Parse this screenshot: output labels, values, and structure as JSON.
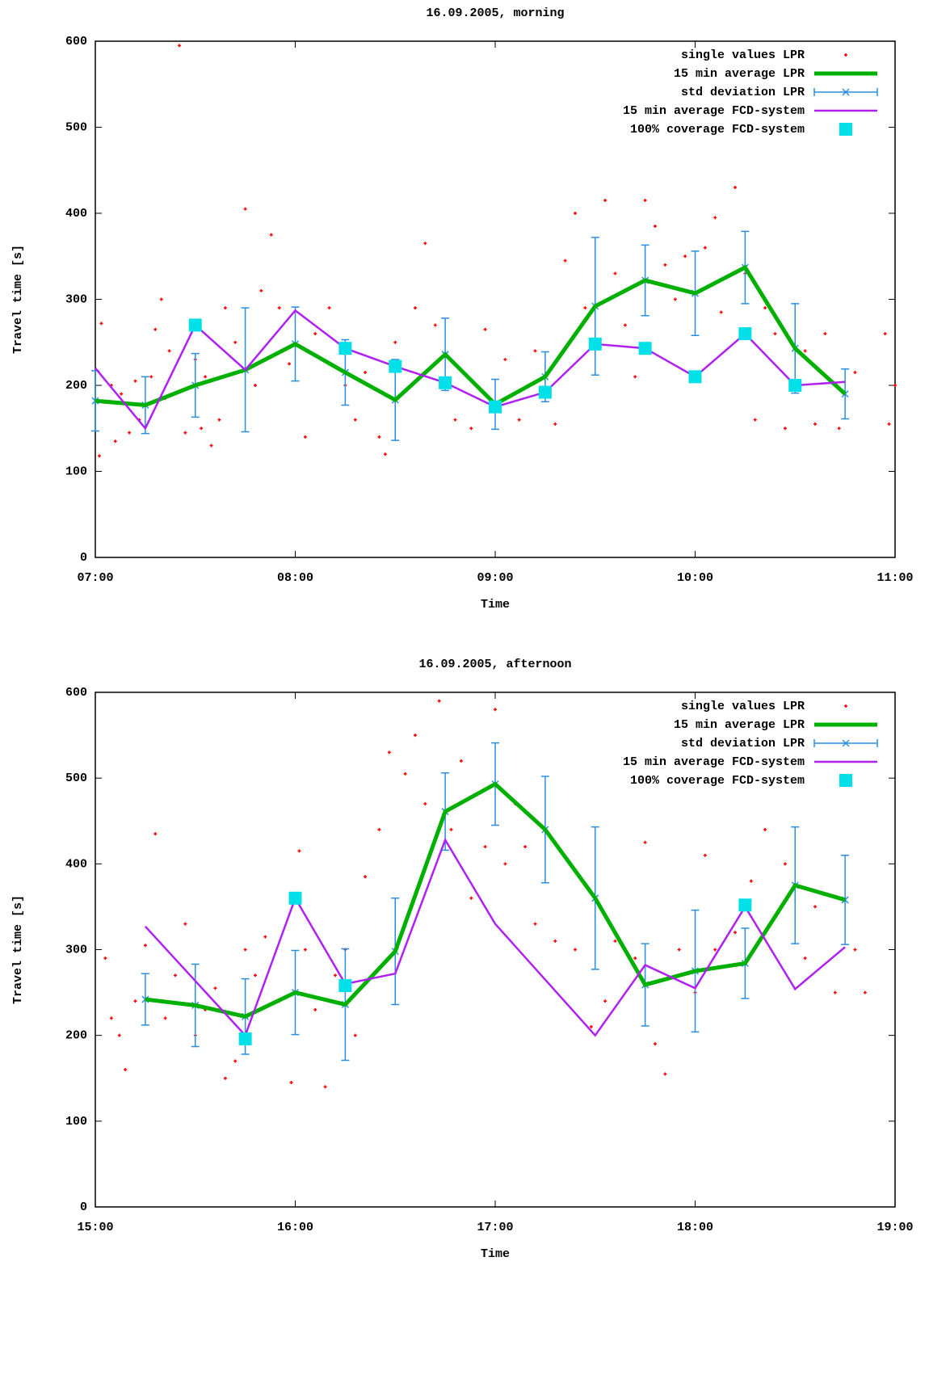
{
  "chart_data": [
    {
      "type": "line",
      "title": "16.09.2005, morning",
      "x_label": "Time",
      "y_label": "Travel time [s]",
      "xlim": [
        7,
        11
      ],
      "ylim": [
        0,
        600
      ],
      "xticks": [
        {
          "value": 7,
          "label": "07:00"
        },
        {
          "value": 8,
          "label": "08:00"
        },
        {
          "value": 9,
          "label": "09:00"
        },
        {
          "value": 10,
          "label": "10:00"
        },
        {
          "value": 11,
          "label": "11:00"
        }
      ],
      "yticks": [
        0,
        100,
        200,
        300,
        400,
        500,
        600
      ],
      "legend": "upper right",
      "series": [
        {
          "name": "single values LPR",
          "type": "scatter",
          "color": "#ff0000",
          "x": [
            7.02,
            7.03,
            7.08,
            7.1,
            7.13,
            7.17,
            7.2,
            7.22,
            7.28,
            7.3,
            7.33,
            7.35,
            7.37,
            7.42,
            7.45,
            7.5,
            7.53,
            7.55,
            7.58,
            7.62,
            7.65,
            7.7,
            7.75,
            7.8,
            7.83,
            7.88,
            7.92,
            7.97,
            8.05,
            8.1,
            8.17,
            8.25,
            8.3,
            8.35,
            8.42,
            8.45,
            8.5,
            8.6,
            8.65,
            8.7,
            8.8,
            8.88,
            8.95,
            9.05,
            9.12,
            9.2,
            9.3,
            9.35,
            9.4,
            9.45,
            9.55,
            9.6,
            9.65,
            9.7,
            9.75,
            9.8,
            9.85,
            9.9,
            9.95,
            10.05,
            10.1,
            10.13,
            10.2,
            10.25,
            10.3,
            10.35,
            10.4,
            10.45,
            10.55,
            10.6,
            10.65,
            10.72,
            10.8,
            10.95,
            10.97,
            11.0
          ],
          "values": [
            118,
            272,
            200,
            135,
            190,
            145,
            205,
            160,
            210,
            265,
            300,
            185,
            240,
            595,
            145,
            230,
            150,
            210,
            130,
            160,
            290,
            250,
            405,
            200,
            310,
            375,
            290,
            225,
            140,
            260,
            290,
            200,
            160,
            215,
            140,
            120,
            250,
            290,
            365,
            270,
            160,
            150,
            265,
            230,
            160,
            240,
            155,
            345,
            400,
            290,
            415,
            330,
            270,
            210,
            415,
            385,
            340,
            300,
            350,
            360,
            395,
            285,
            430,
            330,
            160,
            290,
            260,
            150,
            240,
            155,
            260,
            150,
            215,
            260,
            155,
            200
          ]
        },
        {
          "name": "15 min average LPR",
          "type": "line",
          "color": "#00b000",
          "x": [
            7,
            7.25,
            7.5,
            7.75,
            8,
            8.25,
            8.5,
            8.75,
            9,
            9.25,
            9.5,
            9.75,
            10,
            10.25,
            10.5,
            10.75
          ],
          "values": [
            182,
            177,
            200,
            218,
            248,
            215,
            183,
            236,
            178,
            210,
            292,
            322,
            307,
            337,
            243,
            190
          ]
        },
        {
          "name": "std deviation LPR",
          "type": "errorbar",
          "color": "#2a8fe0",
          "x": [
            7,
            7.25,
            7.5,
            7.75,
            8,
            8.25,
            8.5,
            8.75,
            9,
            9.25,
            9.5,
            9.75,
            10,
            10.25,
            10.5,
            10.75
          ],
          "values": [
            182,
            177,
            200,
            218,
            248,
            215,
            183,
            236,
            178,
            210,
            292,
            322,
            307,
            337,
            243,
            190
          ],
          "errors": [
            35,
            33,
            37,
            72,
            43,
            38,
            47,
            42,
            29,
            29,
            80,
            41,
            49,
            42,
            52,
            29
          ]
        },
        {
          "name": "15 min average FCD-system",
          "type": "line",
          "color": "#b020f0",
          "x": [
            7,
            7.25,
            7.5,
            7.75,
            8,
            8.25,
            8.5,
            8.75,
            9,
            9.25,
            9.5,
            9.75,
            10,
            10.25,
            10.5,
            10.75
          ],
          "values": [
            220,
            150,
            270,
            218,
            287,
            243,
            222,
            203,
            175,
            192,
            248,
            243,
            210,
            260,
            200,
            204
          ]
        },
        {
          "name": "100% coverage FCD-system",
          "type": "square",
          "color": "#00e0e8",
          "x": [
            7.5,
            8.25,
            8.5,
            8.75,
            9,
            9.25,
            9.5,
            9.75,
            10,
            10.25,
            10.5
          ],
          "values": [
            270,
            243,
            222,
            203,
            175,
            192,
            248,
            243,
            210,
            260,
            200
          ]
        }
      ]
    },
    {
      "type": "line",
      "title": "16.09.2005, afternoon",
      "x_label": "Time",
      "y_label": "Travel time [s]",
      "xlim": [
        15,
        19
      ],
      "ylim": [
        0,
        600
      ],
      "xticks": [
        {
          "value": 15,
          "label": "15:00"
        },
        {
          "value": 16,
          "label": "16:00"
        },
        {
          "value": 17,
          "label": "17:00"
        },
        {
          "value": 18,
          "label": "18:00"
        },
        {
          "value": 19,
          "label": "19:00"
        }
      ],
      "yticks": [
        0,
        100,
        200,
        300,
        400,
        500,
        600
      ],
      "legend": "upper right",
      "series": [
        {
          "name": "single values LPR",
          "type": "scatter",
          "color": "#ff0000",
          "x": [
            15.05,
            15.08,
            15.12,
            15.15,
            15.2,
            15.25,
            15.3,
            15.35,
            15.4,
            15.45,
            15.5,
            15.55,
            15.6,
            15.65,
            15.7,
            15.75,
            15.8,
            15.85,
            15.92,
            15.98,
            16.02,
            16.05,
            16.1,
            16.15,
            16.2,
            16.25,
            16.3,
            16.35,
            16.42,
            16.47,
            16.55,
            16.6,
            16.65,
            16.72,
            16.78,
            16.83,
            16.88,
            16.95,
            17.0,
            17.05,
            17.1,
            17.15,
            17.2,
            17.3,
            17.4,
            17.48,
            17.55,
            17.6,
            17.7,
            17.75,
            17.8,
            17.85,
            17.92,
            18.0,
            18.05,
            18.1,
            18.2,
            18.28,
            18.35,
            18.45,
            18.55,
            18.6,
            18.7,
            18.8,
            18.85
          ],
          "values": [
            290,
            220,
            200,
            160,
            240,
            305,
            435,
            220,
            270,
            330,
            200,
            230,
            255,
            150,
            170,
            300,
            270,
            315,
            240,
            145,
            415,
            300,
            230,
            140,
            270,
            300,
            200,
            385,
            440,
            530,
            505,
            550,
            470,
            590,
            440,
            520,
            360,
            420,
            580,
            400,
            470,
            420,
            330,
            310,
            300,
            210,
            240,
            310,
            290,
            425,
            190,
            155,
            300,
            250,
            410,
            300,
            320,
            380,
            440,
            400,
            290,
            350,
            250,
            300,
            250
          ]
        },
        {
          "name": "15 min average LPR",
          "type": "line",
          "color": "#00b000",
          "x": [
            15.25,
            15.5,
            15.75,
            16,
            16.25,
            16.5,
            16.75,
            17,
            17.25,
            17.5,
            17.75,
            18,
            18.25,
            18.5,
            18.75
          ],
          "values": [
            242,
            235,
            222,
            250,
            236,
            298,
            461,
            493,
            440,
            360,
            259,
            275,
            284,
            375,
            358
          ]
        },
        {
          "name": "std deviation LPR",
          "type": "errorbar",
          "color": "#2a8fe0",
          "x": [
            15.25,
            15.5,
            15.75,
            16,
            16.25,
            16.5,
            16.75,
            17,
            17.25,
            17.5,
            17.75,
            18,
            18.25,
            18.5,
            18.75
          ],
          "values": [
            242,
            235,
            222,
            250,
            236,
            298,
            461,
            493,
            440,
            360,
            259,
            275,
            284,
            375,
            358
          ],
          "errors": [
            30,
            48,
            44,
            49,
            65,
            62,
            45,
            48,
            62,
            83,
            48,
            71,
            41,
            68,
            52
          ]
        },
        {
          "name": "15 min average FCD-system",
          "type": "line",
          "color": "#b020f0",
          "x": [
            15.25,
            15.75,
            16,
            16.25,
            16.5,
            16.75,
            17,
            17.5,
            17.75,
            18,
            18.25,
            18.5,
            18.75
          ],
          "values": [
            327,
            200,
            360,
            260,
            272,
            428,
            330,
            200,
            282,
            255,
            350,
            254,
            303
          ]
        },
        {
          "name": "100% coverage FCD-system",
          "type": "square",
          "color": "#00e0e8",
          "x": [
            15.75,
            16,
            16.25,
            18.25
          ],
          "values": [
            196,
            360,
            258,
            352
          ]
        }
      ]
    }
  ]
}
